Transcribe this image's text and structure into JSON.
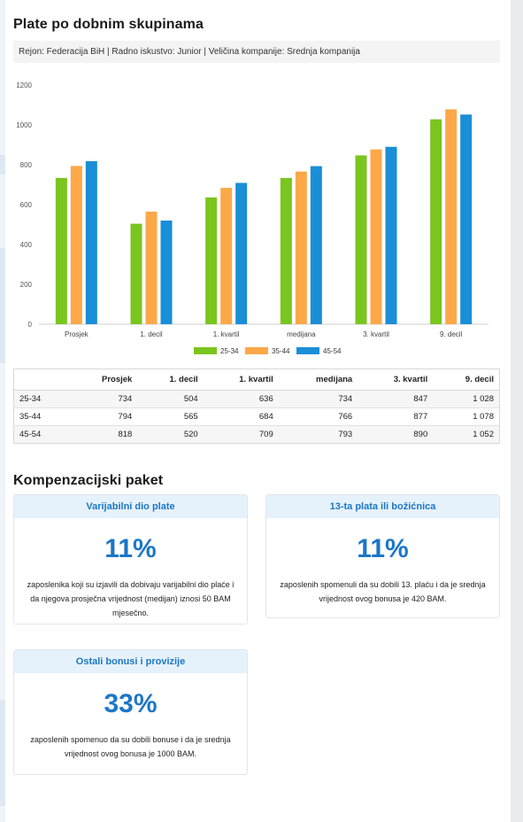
{
  "heading1": "Plate po dobnim skupinama",
  "filters": "Rejon: Federacija BiH | Radno iskustvo: Junior | Veličina kompanije: Srednja kompanija",
  "chart_data": {
    "type": "bar",
    "categories": [
      "Prosjek",
      "1. decil",
      "1. kvartil",
      "medijana",
      "3. kvartil",
      "9. decil"
    ],
    "series": [
      {
        "name": "25-34",
        "color": "#7ac51e",
        "values": [
          734,
          504,
          636,
          734,
          847,
          1028
        ]
      },
      {
        "name": "35-44",
        "color": "#fda848",
        "values": [
          794,
          565,
          684,
          766,
          877,
          1078
        ]
      },
      {
        "name": "45-54",
        "color": "#1a8ed7",
        "values": [
          818,
          520,
          709,
          793,
          890,
          1052
        ]
      }
    ],
    "yticks": [
      "0",
      "200",
      "400",
      "600",
      "800",
      "1000",
      "1200"
    ],
    "ylim": [
      0,
      1200
    ],
    "grid": false,
    "legend": "bottom"
  },
  "table": {
    "headers": [
      "",
      "Prosjek",
      "1. decil",
      "1. kvartil",
      "medijana",
      "3. kvartil",
      "9. decil"
    ],
    "rows": [
      [
        "25-34",
        "734",
        "504",
        "636",
        "734",
        "847",
        "1 028"
      ],
      [
        "35-44",
        "794",
        "565",
        "684",
        "766",
        "877",
        "1 078"
      ],
      [
        "45-54",
        "818",
        "520",
        "709",
        "793",
        "890",
        "1 052"
      ]
    ]
  },
  "heading2": "Kompenzacijski paket",
  "cards": [
    {
      "title": "Varijabilni dio plate",
      "percent": "11%",
      "desc": "zaposlenika koji su izjavili da dobivaju varijabilni dio plaće i da njegova prosječna vrijednost (medijan) iznosi 50 BAM mjesečno."
    },
    {
      "title": "13-ta plata ili božićnica",
      "percent": "11%",
      "desc": "zaposlenih spomenuli da su dobili 13. plaću i da je srednja vrijednost ovog bonusa je 420 BAM."
    },
    {
      "title": "Ostali bonusi i provizije",
      "percent": "33%",
      "desc": "zaposlenih spomenuo da su dobili bonuse i da je srednja vrijednost ovog bonusa je 1000 BAM."
    }
  ]
}
